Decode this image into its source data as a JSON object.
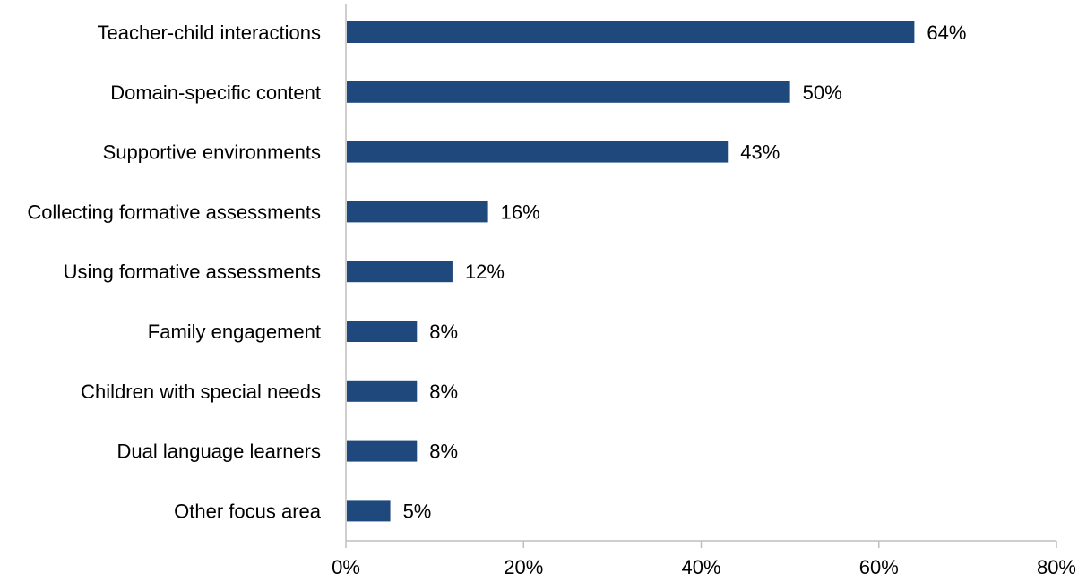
{
  "chart_data": {
    "type": "bar",
    "orientation": "horizontal",
    "categories": [
      "Teacher-child interactions",
      "Domain-specific content",
      "Supportive environments",
      "Collecting formative assessments",
      "Using formative assessments",
      "Family engagement",
      "Children with special needs",
      "Dual language learners",
      "Other focus area"
    ],
    "values": [
      64,
      50,
      43,
      16,
      12,
      8,
      8,
      8,
      5
    ],
    "value_labels": [
      "64%",
      "50%",
      "43%",
      "16%",
      "12%",
      "8%",
      "8%",
      "8%",
      "5%"
    ],
    "xlim": [
      0,
      80
    ],
    "x_ticks": [
      0,
      20,
      40,
      60,
      80
    ],
    "x_tick_labels": [
      "0%",
      "20%",
      "40%",
      "60%",
      "80%"
    ],
    "title": "",
    "xlabel": "",
    "ylabel": "",
    "grid": false,
    "legend": "none",
    "bar_color": "#1F497D",
    "axis_color": "#BFBFBF"
  }
}
